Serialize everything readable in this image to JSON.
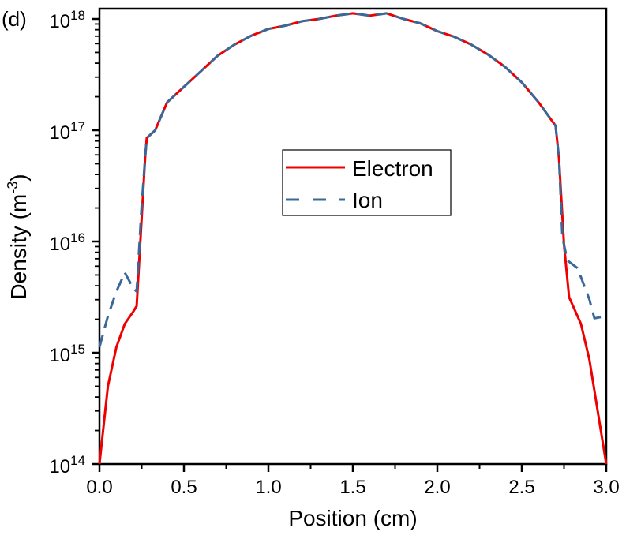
{
  "panel_label": "(d)",
  "chart_data": {
    "type": "line",
    "title": "",
    "xlabel": "Position (cm)",
    "ylabel_main": "Density (m",
    "ylabel_sup": "-3",
    "ylabel_end": ")",
    "xlim": [
      0,
      3.0
    ],
    "ylim": [
      100000000000000.0,
      1e+18
    ],
    "yscale": "log",
    "x_ticks": [
      "0.0",
      "0.5",
      "1.0",
      "1.5",
      "2.0",
      "2.5",
      "3.0"
    ],
    "y_ticks": [
      {
        "base": "10",
        "exp": "14"
      },
      {
        "base": "10",
        "exp": "15"
      },
      {
        "base": "10",
        "exp": "16"
      },
      {
        "base": "10",
        "exp": "17"
      },
      {
        "base": "10",
        "exp": "18"
      }
    ],
    "legend_position": "center",
    "series": [
      {
        "name": "Electron",
        "color": "#ee0000",
        "style": "solid",
        "x": [
          0,
          0.05,
          0.1,
          0.15,
          0.2,
          0.22,
          0.27,
          0.28,
          0.33,
          0.4,
          0.5,
          0.6,
          0.7,
          0.8,
          0.9,
          1.0,
          1.1,
          1.2,
          1.3,
          1.4,
          1.5,
          1.6,
          1.7,
          1.8,
          1.9,
          2.0,
          2.1,
          2.2,
          2.3,
          2.4,
          2.5,
          2.6,
          2.7,
          2.72,
          2.75,
          2.78,
          2.85,
          2.9,
          3.0
        ],
        "log10_y": [
          14.0,
          14.7,
          15.05,
          15.26,
          15.37,
          15.42,
          16.75,
          16.93,
          17.0,
          17.25,
          17.39,
          17.53,
          17.67,
          17.77,
          17.85,
          17.91,
          17.94,
          17.98,
          18.0,
          18.03,
          18.05,
          18.03,
          18.05,
          18.0,
          17.96,
          17.89,
          17.84,
          17.77,
          17.68,
          17.57,
          17.43,
          17.25,
          17.04,
          16.75,
          15.97,
          15.5,
          15.26,
          14.94,
          14.0
        ]
      },
      {
        "name": "Ion",
        "color": "#3a6899",
        "style": "dashed",
        "x": [
          0,
          0.05,
          0.1,
          0.15,
          0.2,
          0.22,
          0.25,
          0.27,
          0.28,
          0.33,
          0.4,
          0.5,
          0.6,
          0.7,
          0.8,
          0.9,
          1.0,
          1.1,
          1.2,
          1.3,
          1.4,
          1.5,
          1.6,
          1.7,
          1.8,
          1.9,
          2.0,
          2.1,
          2.2,
          2.3,
          2.4,
          2.5,
          2.6,
          2.7,
          2.72,
          2.74,
          2.77,
          2.83,
          2.9,
          2.93,
          3.0
        ],
        "log10_y": [
          15.05,
          15.33,
          15.55,
          15.72,
          15.58,
          15.55,
          16.33,
          16.75,
          16.93,
          17.0,
          17.25,
          17.39,
          17.53,
          17.67,
          17.77,
          17.85,
          17.91,
          17.94,
          17.98,
          18.0,
          18.03,
          18.05,
          18.03,
          18.05,
          18.0,
          17.96,
          17.89,
          17.84,
          17.77,
          17.68,
          17.57,
          17.43,
          17.25,
          17.04,
          16.75,
          16.04,
          15.83,
          15.76,
          15.48,
          15.31,
          15.33
        ]
      }
    ]
  }
}
